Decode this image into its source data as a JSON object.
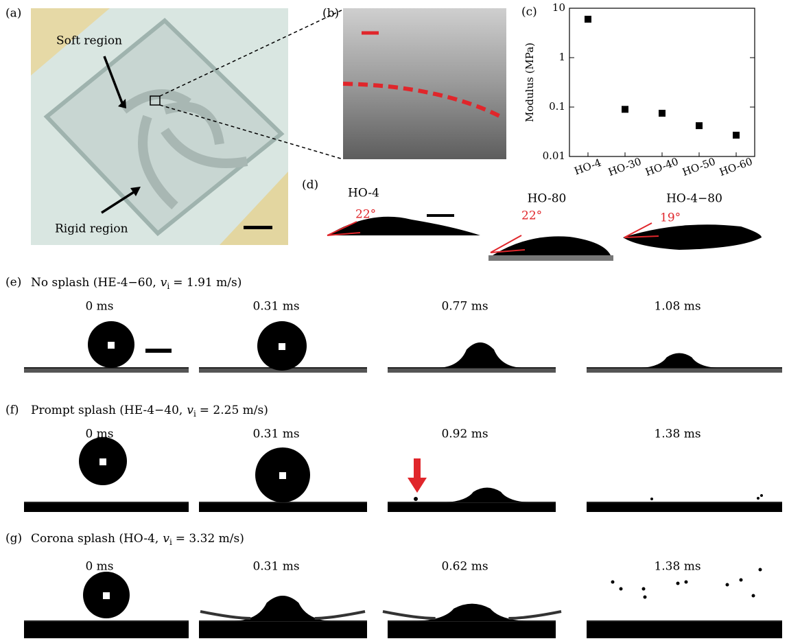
{
  "panels": {
    "a": {
      "label": "(a)",
      "soft": "Soft region",
      "rigid": "Rigid region"
    },
    "b": {
      "label": "(b)"
    },
    "d": {
      "label": "(d)",
      "samples": [
        {
          "name": "HO-4",
          "angle": "22°"
        },
        {
          "name": "HO-80",
          "angle": "22°"
        },
        {
          "name": "HO-4−80",
          "angle": "19°"
        }
      ]
    }
  },
  "chart_data": {
    "type": "scatter",
    "panel_label": "(c)",
    "y_label": "Modulus (MPa)",
    "categories": [
      "HO-4",
      "HO-30",
      "HO-40",
      "HO-50",
      "HO-60"
    ],
    "values": [
      6,
      0.09,
      0.075,
      0.042,
      0.027
    ],
    "color": "#000000",
    "ylim": [
      0.01,
      10
    ],
    "yticks": [
      0.01,
      0.1,
      1,
      10
    ],
    "log_y": true
  },
  "rows": [
    {
      "label": "(e)",
      "title": "No splash (HE-4−60,",
      "symbol": "v",
      "subscript": "i",
      "value": "= 1.91 m/s)",
      "times": [
        "0 ms",
        "0.31 ms",
        "0.77 ms",
        "1.08 ms"
      ]
    },
    {
      "label": "(f)",
      "title": "Prompt splash (HE-4−40,",
      "symbol": "v",
      "subscript": "i",
      "value": "= 2.25 m/s)",
      "times": [
        "0 ms",
        "0.31 ms",
        "0.92 ms",
        "1.38 ms"
      ]
    },
    {
      "label": "(g)",
      "title": "Corona splash (HO-4,",
      "symbol": "v",
      "subscript": "i",
      "value": "= 3.32 m/s)",
      "times": [
        "0 ms",
        "0.31 ms",
        "0.62 ms",
        "1.38 ms"
      ]
    }
  ]
}
